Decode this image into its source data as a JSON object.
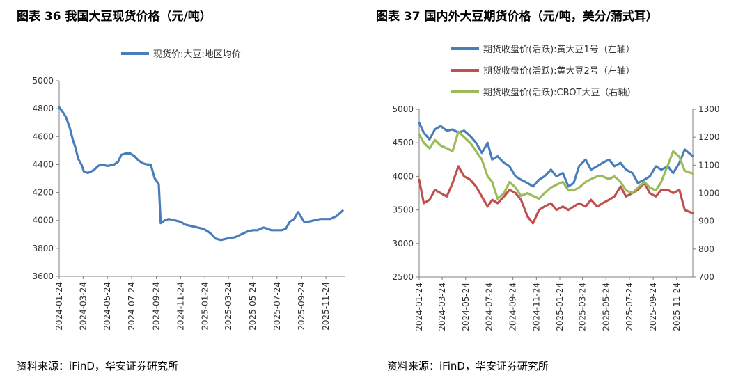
{
  "header": {
    "left_title": "图表 36 我国大豆现货价格（元/吨）",
    "right_title": "图表 37 国内外大豆期货价格（元/吨，美分/蒲式耳）"
  },
  "footer": {
    "left_source": "资料来源：iFinD，华安证券研究所",
    "right_source": "资料来源：iFinD，华安证券研究所"
  },
  "chart_data": [
    {
      "type": "line",
      "title": "",
      "xlabel": "",
      "ylabel": "",
      "ylim": [
        3600,
        5000
      ],
      "yticks": [
        "5000",
        "4800",
        "4600",
        "4400",
        "4200",
        "4000",
        "3800",
        "3600"
      ],
      "xticks": [
        "2024-01-24",
        "2024-03-24",
        "2024-05-24",
        "2024-07-24",
        "2024-09-24",
        "2024-11-24",
        "2025-01-24",
        "2025-03-24",
        "2025-05-24",
        "2025-07-24",
        "2025-09-24",
        "2025-11-24"
      ],
      "xrange": [
        "2024-01-24",
        "2026-01-10"
      ],
      "legend_position": "top",
      "grid": false,
      "series": [
        {
          "name": "现货价:大豆:地区均价",
          "color": "#4a7ebb",
          "x": [
            "2024-01-24",
            "2024-02-01",
            "2024-02-10",
            "2024-02-20",
            "2024-02-27",
            "2024-03-05",
            "2024-03-12",
            "2024-03-20",
            "2024-03-26",
            "2024-04-05",
            "2024-04-20",
            "2024-05-01",
            "2024-05-10",
            "2024-05-24",
            "2024-06-10",
            "2024-06-20",
            "2024-06-28",
            "2024-07-10",
            "2024-07-20",
            "2024-07-31",
            "2024-08-10",
            "2024-08-20",
            "2024-09-01",
            "2024-09-10",
            "2024-09-20",
            "2024-09-30",
            "2024-10-05",
            "2024-10-15",
            "2024-10-25",
            "2024-11-10",
            "2024-11-24",
            "2024-12-05",
            "2024-12-20",
            "2025-01-05",
            "2025-01-20",
            "2025-02-01",
            "2025-02-10",
            "2025-02-20",
            "2025-03-05",
            "2025-03-20",
            "2025-04-10",
            "2025-04-25",
            "2025-05-10",
            "2025-05-24",
            "2025-06-05",
            "2025-06-20",
            "2025-07-10",
            "2025-07-24",
            "2025-08-05",
            "2025-08-15",
            "2025-08-25",
            "2025-09-05",
            "2025-09-15",
            "2025-09-30",
            "2025-10-10",
            "2025-10-25",
            "2025-11-10",
            "2025-11-24",
            "2025-12-05",
            "2025-12-20",
            "2026-01-05"
          ],
          "y": [
            4810,
            4780,
            4740,
            4660,
            4580,
            4520,
            4440,
            4400,
            4350,
            4340,
            4360,
            4390,
            4400,
            4390,
            4400,
            4420,
            4470,
            4480,
            4480,
            4460,
            4430,
            4410,
            4400,
            4400,
            4300,
            4260,
            3980,
            4000,
            4010,
            4000,
            3990,
            3970,
            3960,
            3950,
            3940,
            3920,
            3900,
            3870,
            3860,
            3870,
            3880,
            3900,
            3920,
            3930,
            3930,
            3950,
            3930,
            3930,
            3930,
            3940,
            3990,
            4010,
            4060,
            3990,
            3990,
            4000,
            4010,
            4010,
            4010,
            4030,
            4070
          ]
        }
      ]
    },
    {
      "type": "line",
      "title": "",
      "xlabel": "",
      "ylabel": "",
      "ylim": [
        2500,
        5000
      ],
      "y2lim": [
        700,
        1300
      ],
      "yticks": [
        "5000",
        "4500",
        "4000",
        "3500",
        "3000",
        "2500"
      ],
      "y2ticks": [
        "1300",
        "1200",
        "1100",
        "1000",
        "900",
        "800",
        "700"
      ],
      "xticks": [
        "2024-01-24",
        "2024-03-24",
        "2024-05-24",
        "2024-07-24",
        "2024-09-24",
        "2024-11-24",
        "2025-01-24",
        "2025-03-24",
        "2025-05-24",
        "2025-07-24",
        "2025-09-24",
        "2025-11-24"
      ],
      "xrange": [
        "2024-01-24",
        "2026-01-05"
      ],
      "legend_position": "top",
      "grid": false,
      "series": [
        {
          "name": "期货收盘价(活跃):黄大豆1号（左轴）",
          "color": "#4a7ebb",
          "axis": "left",
          "x": [
            "2024-01-24",
            "2024-02-05",
            "2024-02-20",
            "2024-03-05",
            "2024-03-20",
            "2024-04-05",
            "2024-04-20",
            "2024-05-05",
            "2024-05-20",
            "2024-06-05",
            "2024-06-20",
            "2024-07-05",
            "2024-07-20",
            "2024-08-01",
            "2024-08-15",
            "2024-09-01",
            "2024-09-15",
            "2024-10-01",
            "2024-10-15",
            "2024-11-01",
            "2024-11-15",
            "2024-12-01",
            "2024-12-15",
            "2025-01-01",
            "2025-01-15",
            "2025-02-01",
            "2025-02-15",
            "2025-03-01",
            "2025-03-15",
            "2025-04-01",
            "2025-04-15",
            "2025-05-01",
            "2025-05-15",
            "2025-06-01",
            "2025-06-15",
            "2025-07-01",
            "2025-07-15",
            "2025-08-01",
            "2025-08-15",
            "2025-09-01",
            "2025-09-15",
            "2025-10-01",
            "2025-10-15",
            "2025-11-01",
            "2025-11-15",
            "2025-12-01",
            "2025-12-15",
            "2026-01-05"
          ],
          "y": [
            4800,
            4650,
            4550,
            4700,
            4750,
            4680,
            4700,
            4650,
            4680,
            4600,
            4500,
            4350,
            4500,
            4250,
            4300,
            4200,
            4150,
            4000,
            3950,
            3900,
            3850,
            3950,
            4000,
            4100,
            4000,
            4050,
            3850,
            3900,
            4150,
            4250,
            4100,
            4150,
            4200,
            4250,
            4150,
            4200,
            4100,
            4050,
            3900,
            3950,
            4000,
            4150,
            4100,
            4150,
            4050,
            4200,
            4400,
            4300
          ]
        },
        {
          "name": "期货收盘价(活跃):黄大豆2号（左轴）",
          "color": "#c0504d",
          "axis": "left",
          "x": [
            "2024-01-24",
            "2024-02-05",
            "2024-02-20",
            "2024-03-05",
            "2024-03-20",
            "2024-04-05",
            "2024-04-20",
            "2024-05-05",
            "2024-05-20",
            "2024-06-05",
            "2024-06-20",
            "2024-07-05",
            "2024-07-20",
            "2024-08-01",
            "2024-08-15",
            "2024-09-01",
            "2024-09-15",
            "2024-10-01",
            "2024-10-15",
            "2024-11-01",
            "2024-11-15",
            "2024-12-01",
            "2024-12-15",
            "2025-01-01",
            "2025-01-15",
            "2025-02-01",
            "2025-02-15",
            "2025-03-01",
            "2025-03-15",
            "2025-04-01",
            "2025-04-15",
            "2025-05-01",
            "2025-05-15",
            "2025-06-01",
            "2025-06-15",
            "2025-07-01",
            "2025-07-15",
            "2025-08-01",
            "2025-08-15",
            "2025-09-01",
            "2025-09-15",
            "2025-10-01",
            "2025-10-15",
            "2025-11-01",
            "2025-11-15",
            "2025-12-01",
            "2025-12-15",
            "2026-01-05"
          ],
          "y": [
            3950,
            3600,
            3650,
            3800,
            3750,
            3700,
            3900,
            4150,
            4000,
            3950,
            3850,
            3700,
            3550,
            3650,
            3600,
            3700,
            3800,
            3750,
            3650,
            3400,
            3300,
            3500,
            3550,
            3600,
            3500,
            3550,
            3500,
            3550,
            3600,
            3550,
            3650,
            3550,
            3600,
            3650,
            3700,
            3850,
            3700,
            3750,
            3800,
            3900,
            3750,
            3700,
            3800,
            3800,
            3750,
            3800,
            3500,
            3450
          ]
        },
        {
          "name": "期货收盘价(活跃):CBOT大豆（右轴）",
          "color": "#9bbb59",
          "axis": "right",
          "x": [
            "2024-01-24",
            "2024-02-05",
            "2024-02-20",
            "2024-03-05",
            "2024-03-20",
            "2024-04-05",
            "2024-04-20",
            "2024-05-05",
            "2024-05-20",
            "2024-06-05",
            "2024-06-20",
            "2024-07-05",
            "2024-07-20",
            "2024-08-01",
            "2024-08-15",
            "2024-09-01",
            "2024-09-15",
            "2024-10-01",
            "2024-10-15",
            "2024-11-01",
            "2024-11-15",
            "2024-12-01",
            "2024-12-15",
            "2025-01-01",
            "2025-01-15",
            "2025-02-01",
            "2025-02-15",
            "2025-03-01",
            "2025-03-15",
            "2025-04-01",
            "2025-04-15",
            "2025-05-01",
            "2025-05-15",
            "2025-06-01",
            "2025-06-15",
            "2025-07-01",
            "2025-07-15",
            "2025-08-01",
            "2025-08-15",
            "2025-09-01",
            "2025-09-15",
            "2025-10-01",
            "2025-10-15",
            "2025-11-01",
            "2025-11-15",
            "2025-12-01",
            "2025-12-15",
            "2026-01-05"
          ],
          "y": [
            1210,
            1180,
            1160,
            1190,
            1170,
            1160,
            1150,
            1220,
            1200,
            1180,
            1150,
            1120,
            1060,
            1040,
            980,
            1000,
            1040,
            1020,
            990,
            1000,
            990,
            980,
            1000,
            1020,
            1030,
            1040,
            1010,
            1010,
            1020,
            1040,
            1050,
            1060,
            1060,
            1050,
            1060,
            1040,
            1010,
            1000,
            1020,
            1040,
            1020,
            1010,
            1040,
            1100,
            1150,
            1130,
            1080,
            1070
          ]
        }
      ]
    }
  ]
}
